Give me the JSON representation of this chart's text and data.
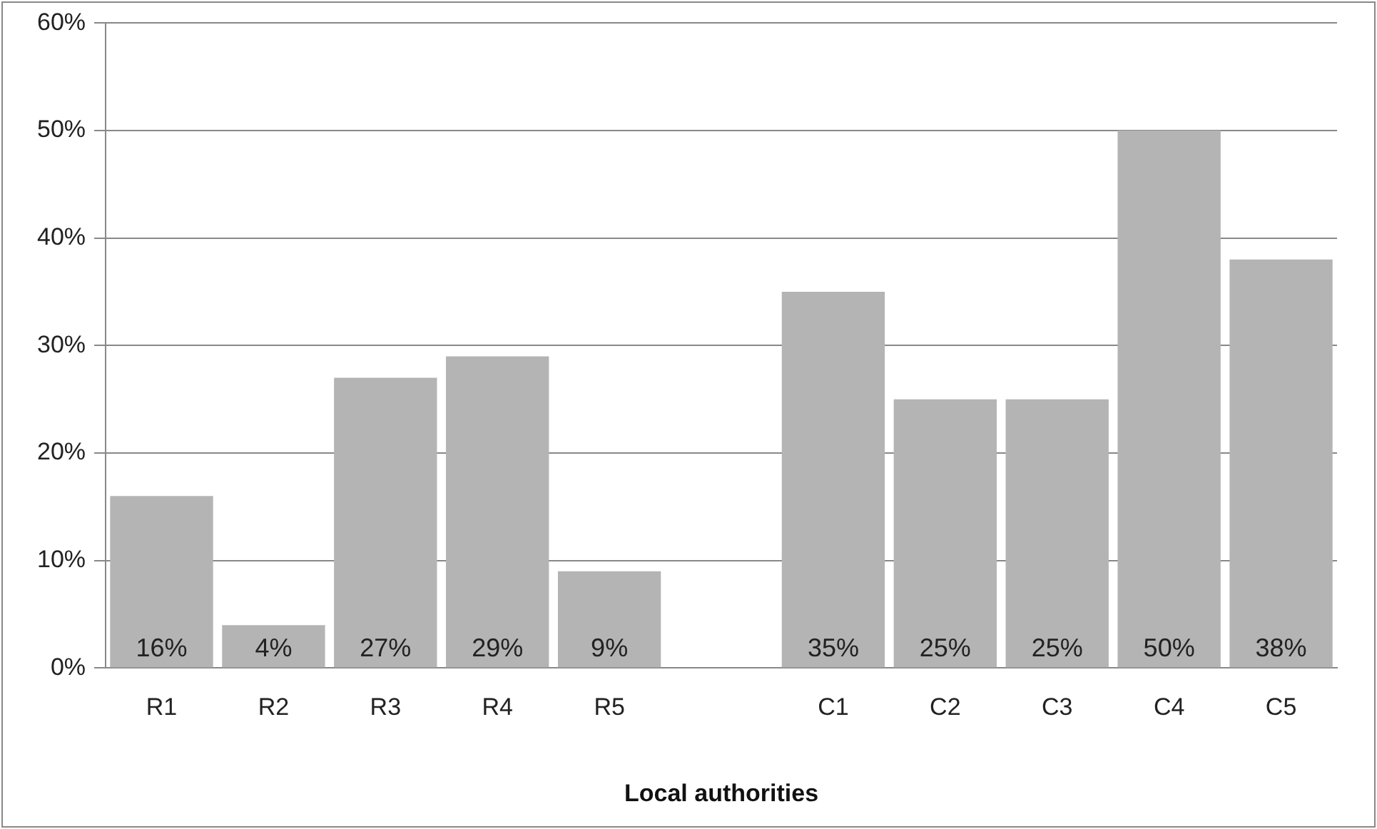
{
  "chart_data": {
    "type": "bar",
    "xlabel": "Local authorities",
    "categories": [
      "R1",
      "R2",
      "R3",
      "R4",
      "R5",
      null,
      "C1",
      "C2",
      "C3",
      "C4",
      "C5"
    ],
    "values": [
      16,
      4,
      27,
      29,
      9,
      null,
      35,
      25,
      25,
      50,
      38
    ],
    "value_labels": [
      "16%",
      "4%",
      "27%",
      "29%",
      "9%",
      null,
      "35%",
      "25%",
      "25%",
      "50%",
      "38%"
    ],
    "color": "#b4b4b4",
    "ylim": [
      0,
      60
    ],
    "yticks": [
      {
        "value": 0,
        "label": "0%"
      },
      {
        "value": 10,
        "label": "10%"
      },
      {
        "value": 20,
        "label": "20%"
      },
      {
        "value": 30,
        "label": "30%"
      },
      {
        "value": 40,
        "label": "40%"
      },
      {
        "value": 50,
        "label": "50%"
      },
      {
        "value": 60,
        "label": "60%"
      }
    ],
    "grid": "y",
    "legend": false
  }
}
